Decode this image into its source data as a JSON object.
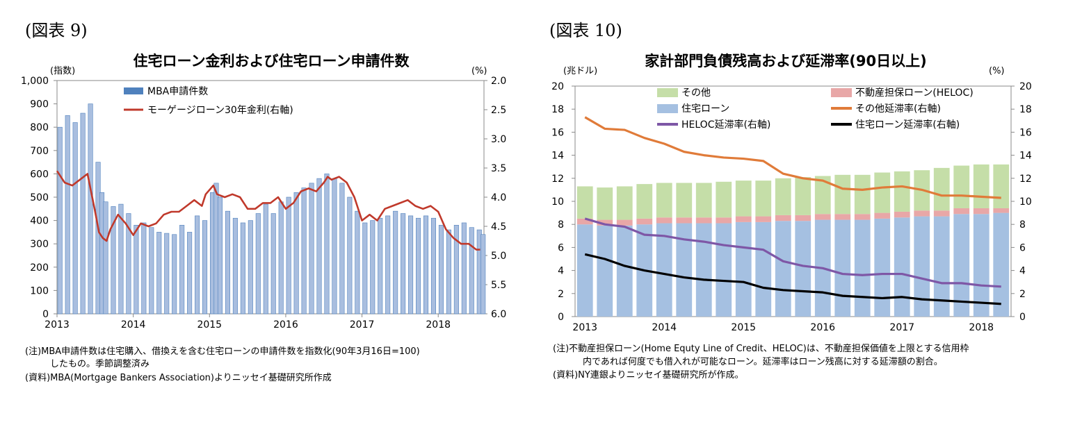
{
  "left": {
    "fig_label": "(図表 9)",
    "notes": [
      "(注)MBA申請件数は住宅購入、借換えを含む住宅ローンの申請件数を指数化(90年3月16日=100)",
      "したもの。季節調整済み",
      "(資料)MBA(Mortgage Bankers Association)よりニッセイ基礎研究所作成"
    ]
  },
  "right": {
    "fig_label": "(図表 10)",
    "notes": [
      "(注)不動産担保ローン(Home Equty Line of Credit、HELOC)は、不動産担保価値を上限とする信用枠",
      "内であれば何度でも借入れが可能なローン。延滞率はローン残高に対する延滞額の割合。",
      "(資料)NY連銀よりニッセイ基礎研究所が作成。"
    ]
  },
  "chart_data": [
    {
      "type": "bar+line",
      "title": "住宅ローン金利および住宅ローン申請件数",
      "ylabel": "(指数)",
      "y2label": "(%)",
      "ylim": [
        0,
        1000
      ],
      "y2lim": [
        6.0,
        2.0
      ],
      "y2_inverted": true,
      "yticks": [
        "0",
        "100",
        "200",
        "300",
        "400",
        "500",
        "600",
        "700",
        "800",
        "900",
        "1,000"
      ],
      "y2ticks": [
        "6.0",
        "5.5",
        "5.0",
        "4.5",
        "4.0",
        "3.5",
        "3.0",
        "2.5",
        "2.0"
      ],
      "xticks": [
        "2013",
        "2014",
        "2015",
        "2016",
        "2017",
        "2018"
      ],
      "colors": {
        "bars": "#4f81bd",
        "line": "#c0392b"
      },
      "legend_position": "top",
      "series": [
        {
          "name": "MBA申請件数",
          "kind": "bar",
          "x": [
            2013.0,
            2013.1,
            2013.2,
            2013.3,
            2013.4,
            2013.5,
            2013.55,
            2013.6,
            2013.7,
            2013.8,
            2013.9,
            2014.0,
            2014.1,
            2014.2,
            2014.3,
            2014.4,
            2014.5,
            2014.6,
            2014.7,
            2014.8,
            2014.9,
            2015.0,
            2015.05,
            2015.1,
            2015.2,
            2015.3,
            2015.4,
            2015.5,
            2015.6,
            2015.7,
            2015.8,
            2015.9,
            2016.0,
            2016.1,
            2016.2,
            2016.3,
            2016.4,
            2016.5,
            2016.6,
            2016.7,
            2016.8,
            2016.9,
            2017.0,
            2017.1,
            2017.2,
            2017.3,
            2017.4,
            2017.5,
            2017.6,
            2017.7,
            2017.8,
            2017.9,
            2018.0,
            2018.1,
            2018.2,
            2018.3,
            2018.4,
            2018.5,
            2018.55
          ],
          "values": [
            800,
            850,
            820,
            860,
            900,
            650,
            520,
            480,
            460,
            470,
            430,
            380,
            390,
            370,
            350,
            345,
            340,
            380,
            350,
            420,
            400,
            520,
            560,
            500,
            440,
            410,
            390,
            400,
            430,
            470,
            430,
            480,
            500,
            520,
            540,
            560,
            580,
            600,
            580,
            560,
            500,
            440,
            390,
            400,
            410,
            420,
            440,
            430,
            420,
            410,
            420,
            410,
            380,
            360,
            380,
            390,
            370,
            360,
            340
          ]
        },
        {
          "name": "モーゲージローン30年金利(右軸)",
          "kind": "line",
          "axis": "right",
          "x": [
            2013.0,
            2013.1,
            2013.2,
            2013.3,
            2013.4,
            2013.5,
            2013.55,
            2013.6,
            2013.65,
            2013.7,
            2013.8,
            2013.9,
            2014.0,
            2014.1,
            2014.2,
            2014.3,
            2014.4,
            2014.5,
            2014.6,
            2014.7,
            2014.8,
            2014.9,
            2014.95,
            2015.05,
            2015.1,
            2015.2,
            2015.3,
            2015.4,
            2015.5,
            2015.6,
            2015.7,
            2015.8,
            2015.9,
            2016.0,
            2016.1,
            2016.2,
            2016.3,
            2016.4,
            2016.5,
            2016.55,
            2016.6,
            2016.7,
            2016.8,
            2016.9,
            2017.0,
            2017.1,
            2017.2,
            2017.3,
            2017.4,
            2017.5,
            2017.6,
            2017.7,
            2017.8,
            2017.9,
            2018.0,
            2018.1,
            2018.2,
            2018.3,
            2018.4,
            2018.5,
            2018.55
          ],
          "values": [
            3.55,
            3.75,
            3.8,
            3.7,
            3.6,
            4.25,
            4.6,
            4.7,
            4.75,
            4.55,
            4.3,
            4.45,
            4.65,
            4.45,
            4.5,
            4.45,
            4.3,
            4.25,
            4.25,
            4.15,
            4.05,
            4.15,
            3.95,
            3.8,
            3.95,
            4.0,
            3.95,
            4.0,
            4.2,
            4.2,
            4.1,
            4.1,
            4.0,
            4.2,
            4.1,
            3.9,
            3.85,
            3.9,
            3.75,
            3.65,
            3.7,
            3.65,
            3.75,
            4.0,
            4.4,
            4.3,
            4.4,
            4.2,
            4.15,
            4.1,
            4.05,
            4.15,
            4.2,
            4.15,
            4.25,
            4.55,
            4.7,
            4.8,
            4.8,
            4.9,
            4.9
          ]
        }
      ]
    },
    {
      "type": "stacked-bar+line",
      "title": "家計部門負債残高および延滞率(90日以上)",
      "ylabel": "(兆ドル)",
      "y2label": "(%)",
      "ylim": [
        0,
        20
      ],
      "y2lim": [
        0,
        20
      ],
      "yticks": [
        "0",
        "2",
        "4",
        "6",
        "8",
        "10",
        "12",
        "14",
        "16",
        "18",
        "20"
      ],
      "y2ticks": [
        "0",
        "2",
        "4",
        "6",
        "8",
        "10",
        "12",
        "14",
        "16",
        "18",
        "20"
      ],
      "xticks": [
        "2013",
        "2014",
        "2015",
        "2016",
        "2017",
        "2018"
      ],
      "legend_position": "top",
      "x": [
        2013.0,
        2013.25,
        2013.5,
        2013.75,
        2014.0,
        2014.25,
        2014.5,
        2014.75,
        2015.0,
        2015.25,
        2015.5,
        2015.75,
        2016.0,
        2016.25,
        2016.5,
        2016.75,
        2017.0,
        2017.25,
        2017.5,
        2017.75,
        2018.0,
        2018.25
      ],
      "series": [
        {
          "name": "住宅ローン",
          "kind": "stack",
          "color": "#a5c0e1",
          "values": [
            8.0,
            7.9,
            7.9,
            8.0,
            8.1,
            8.1,
            8.1,
            8.1,
            8.2,
            8.2,
            8.3,
            8.3,
            8.4,
            8.4,
            8.4,
            8.5,
            8.6,
            8.7,
            8.7,
            8.9,
            8.9,
            9.0
          ]
        },
        {
          "name": "不動産担保ローン(HELOC)",
          "kind": "stack",
          "color": "#e8a7a7",
          "values": [
            0.5,
            0.5,
            0.5,
            0.5,
            0.5,
            0.5,
            0.5,
            0.5,
            0.5,
            0.5,
            0.5,
            0.5,
            0.5,
            0.5,
            0.5,
            0.5,
            0.5,
            0.5,
            0.5,
            0.5,
            0.5,
            0.4
          ]
        },
        {
          "name": "その他",
          "kind": "stack",
          "color": "#c5dea8",
          "values": [
            2.8,
            2.8,
            2.9,
            3.0,
            3.0,
            3.0,
            3.0,
            3.1,
            3.1,
            3.1,
            3.2,
            3.3,
            3.3,
            3.4,
            3.4,
            3.5,
            3.5,
            3.5,
            3.7,
            3.7,
            3.8,
            3.8
          ]
        },
        {
          "name": "その他延滞率(右軸)",
          "kind": "line",
          "color": "#e07b39",
          "values": [
            17.3,
            16.3,
            16.2,
            15.5,
            15.0,
            14.3,
            14.0,
            13.8,
            13.7,
            13.5,
            12.4,
            12.0,
            11.8,
            11.1,
            11.0,
            11.2,
            11.3,
            11.0,
            10.5,
            10.5,
            10.4,
            10.3
          ]
        },
        {
          "name": "HELOC延滞率(右軸)",
          "kind": "line",
          "color": "#7e57a6",
          "values": [
            8.5,
            8.0,
            7.8,
            7.1,
            7.0,
            6.7,
            6.5,
            6.2,
            6.0,
            5.8,
            4.8,
            4.4,
            4.2,
            3.7,
            3.6,
            3.7,
            3.7,
            3.3,
            2.9,
            2.9,
            2.7,
            2.6
          ]
        },
        {
          "name": "住宅ローン延滞率(右軸)",
          "kind": "line",
          "color": "#000000",
          "values": [
            5.4,
            5.0,
            4.4,
            4.0,
            3.7,
            3.4,
            3.2,
            3.1,
            3.0,
            2.5,
            2.3,
            2.2,
            2.1,
            1.8,
            1.7,
            1.6,
            1.7,
            1.5,
            1.4,
            1.3,
            1.2,
            1.1
          ]
        }
      ]
    }
  ]
}
